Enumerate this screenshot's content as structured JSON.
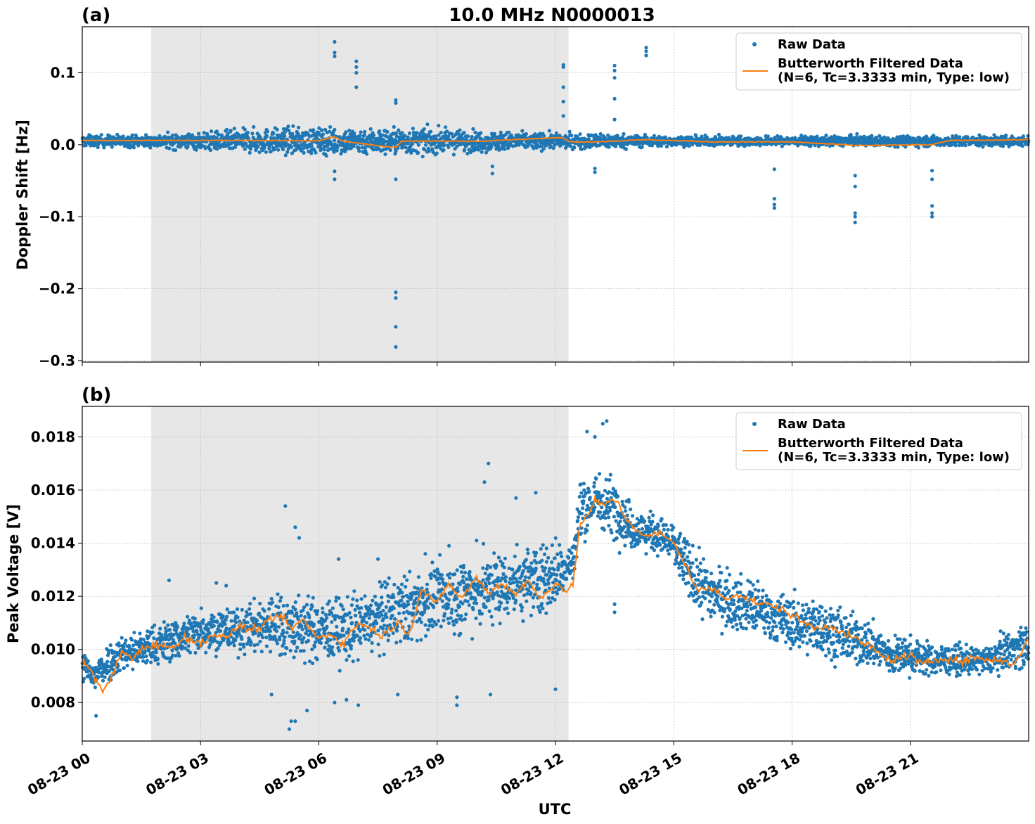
{
  "figure_title": "10.0 MHz N0000013",
  "x_axis_label": "UTC",
  "chart_data": [
    {
      "type": "scatter",
      "panel_label": "(a)",
      "title": "10.0 MHz N0000013",
      "ylabel": "Doppler Shift [Hz]",
      "xlabel": "",
      "xlim_hours": [
        0,
        24
      ],
      "ylim": [
        -0.302,
        0.164
      ],
      "yticks": [
        0.1,
        0.0,
        -0.1,
        -0.2,
        -0.3
      ],
      "ytick_labels": [
        "0.1",
        "0.0",
        "−0.1",
        "−0.2",
        "−0.3"
      ],
      "shaded_span_hours": [
        1.75,
        12.33
      ],
      "grid": true,
      "legend_position": "top-right",
      "series": [
        {
          "name": "Raw Data",
          "kind": "points",
          "color": "#1f77b4",
          "baseline_hz": 0.005,
          "band": {
            "hours": [
              0,
              1.75,
              3,
              4.5,
              6,
              8,
              10,
              12.33,
              13,
              15,
              18,
              21,
              24
            ],
            "halfwidth_hz": [
              0.013,
              0.014,
              0.02,
              0.028,
              0.03,
              0.03,
              0.024,
              0.016,
              0.018,
              0.011,
              0.011,
              0.012,
              0.012
            ]
          },
          "outliers": {
            "x": [
              6.4,
              6.4,
              6.4,
              6.95,
              6.95,
              6.95,
              6.95,
              6.4,
              6.4,
              7.95,
              7.95,
              7.95,
              7.95,
              7.95,
              7.95,
              7.95,
              10.4,
              10.4,
              12.2,
              12.2,
              12.2,
              12.2,
              12.2,
              13.0,
              13.0,
              13.5,
              13.5,
              13.5,
              13.5,
              13.5,
              14.3,
              14.3,
              14.3,
              17.55,
              17.55,
              17.55,
              17.55,
              19.6,
              19.6,
              19.6,
              19.6,
              19.6,
              21.55,
              21.55,
              21.55,
              21.55,
              21.55
            ],
            "y": [
              0.143,
              0.128,
              0.123,
              0.116,
              0.108,
              0.1,
              0.08,
              -0.037,
              -0.048,
              0.062,
              0.058,
              -0.048,
              -0.205,
              -0.213,
              -0.253,
              -0.281,
              -0.03,
              -0.04,
              0.111,
              0.108,
              0.08,
              0.06,
              0.04,
              -0.033,
              -0.038,
              0.11,
              0.103,
              0.093,
              0.064,
              0.035,
              0.135,
              0.13,
              0.124,
              -0.034,
              -0.075,
              -0.083,
              -0.088,
              -0.043,
              -0.058,
              -0.095,
              -0.1,
              -0.108,
              -0.036,
              -0.048,
              -0.085,
              -0.095,
              -0.1
            ]
          }
        },
        {
          "name": "Butterworth Filtered Data\n(N=6, Tc=3.3333 min, Type: low)",
          "kind": "line",
          "color": "#ff7f0e",
          "x": [
            0,
            2,
            4,
            6,
            6.4,
            6.6,
            7.95,
            8.1,
            10,
            12.2,
            12.35,
            13,
            14.3,
            16,
            18,
            19.6,
            21.55,
            22,
            24
          ],
          "y": [
            0.006,
            0.006,
            0.006,
            0.0055,
            0.011,
            0.005,
            -0.004,
            0.005,
            0.005,
            0.01,
            0.004,
            0.004,
            0.007,
            0.004,
            0.004,
            -0.001,
            0.0,
            0.006,
            0.007
          ]
        }
      ]
    },
    {
      "type": "scatter",
      "panel_label": "(b)",
      "title": "",
      "ylabel": "Peak Voltage [V]",
      "xlabel": "UTC",
      "xlim_hours": [
        0,
        24
      ],
      "ylim": [
        0.00655,
        0.01915
      ],
      "yticks": [
        0.018,
        0.016,
        0.014,
        0.012,
        0.01,
        0.008
      ],
      "ytick_labels": [
        "0.018",
        "0.016",
        "0.014",
        "0.012",
        "0.010",
        "0.008"
      ],
      "xtick_labels": [
        "08-23 00",
        "08-23 03",
        "08-23 06",
        "08-23 09",
        "08-23 12",
        "08-23 15",
        "08-23 18",
        "08-23 21"
      ],
      "xtick_hours": [
        0,
        3,
        6,
        9,
        12,
        15,
        18,
        21
      ],
      "shaded_span_hours": [
        1.75,
        12.33
      ],
      "grid": true,
      "legend_position": "top-right",
      "series": [
        {
          "name": "Raw Data",
          "kind": "points",
          "color": "#1f77b4",
          "band": {
            "hours": [
              0,
              0.3,
              0.5,
              1.0,
              1.5,
              2.0,
              2.5,
              3.0,
              3.5,
              4.0,
              4.5,
              5.0,
              5.5,
              6.0,
              6.5,
              7.0,
              7.5,
              8.0,
              8.5,
              9.0,
              9.5,
              10.0,
              10.5,
              11.0,
              11.5,
              12.0,
              12.45,
              12.6,
              13.0,
              13.5,
              14.0,
              14.5,
              15.0,
              15.5,
              16.0,
              16.5,
              17.0,
              17.5,
              18.0,
              18.5,
              19.0,
              19.5,
              20.0,
              20.5,
              21.0,
              21.5,
              22.0,
              22.5,
              23.0,
              23.5,
              24.0
            ],
            "low": [
              0.0085,
              0.0079,
              0.0082,
              0.0087,
              0.0088,
              0.0089,
              0.0091,
              0.0094,
              0.0093,
              0.0094,
              0.0092,
              0.0088,
              0.0088,
              0.0088,
              0.0087,
              0.0088,
              0.009,
              0.0093,
              0.0096,
              0.0098,
              0.0097,
              0.01,
              0.0101,
              0.0103,
              0.0104,
              0.0107,
              0.0118,
              0.0133,
              0.0138,
              0.0135,
              0.0132,
              0.0133,
              0.0125,
              0.0108,
              0.0103,
              0.0101,
              0.0099,
              0.0097,
              0.0093,
              0.0092,
              0.009,
              0.0088,
              0.0088,
              0.0085,
              0.0086,
              0.0086,
              0.0087,
              0.0087,
              0.0088,
              0.0088,
              0.0088
            ],
            "high": [
              0.0103,
              0.01,
              0.0105,
              0.011,
              0.0112,
              0.0115,
              0.0118,
              0.0121,
              0.0122,
              0.012,
              0.0126,
              0.0131,
              0.0128,
              0.0126,
              0.0128,
              0.0129,
              0.0133,
              0.0136,
              0.0137,
              0.014,
              0.0144,
              0.0144,
              0.0146,
              0.0147,
              0.0149,
              0.015,
              0.0147,
              0.017,
              0.0174,
              0.0172,
              0.0158,
              0.0155,
              0.0153,
              0.0145,
              0.0139,
              0.0135,
              0.0133,
              0.0128,
              0.0126,
              0.0126,
              0.0124,
              0.0119,
              0.0116,
              0.011,
              0.0109,
              0.0106,
              0.0105,
              0.0104,
              0.0104,
              0.0112,
              0.0116
            ]
          },
          "outliers": {
            "x": [
              0.35,
              2.2,
              3.4,
              3.65,
              4.8,
              5.15,
              5.25,
              5.3,
              5.4,
              5.4,
              5.5,
              5.7,
              6.4,
              6.5,
              6.7,
              7.0,
              7.5,
              8.0,
              8.7,
              9.3,
              9.5,
              9.5,
              10.0,
              10.2,
              10.3,
              10.35,
              11.0,
              11.5,
              12.0,
              12.8,
              13.0,
              13.2,
              13.3,
              13.5,
              13.5,
              14.3
            ],
            "y": [
              0.0075,
              0.0126,
              0.0125,
              0.0124,
              0.0083,
              0.0154,
              0.007,
              0.0073,
              0.0146,
              0.0073,
              0.0142,
              0.0077,
              0.008,
              0.0134,
              0.0081,
              0.0079,
              0.0134,
              0.0083,
              0.0136,
              0.0139,
              0.0082,
              0.0079,
              0.0141,
              0.0163,
              0.017,
              0.0083,
              0.0157,
              0.0159,
              0.0085,
              0.0182,
              0.018,
              0.0185,
              0.0186,
              0.0114,
              0.0117,
              0.0136
            ]
          }
        },
        {
          "name": "Butterworth Filtered Data\n(N=6, Tc=3.3333 min, Type: low)",
          "kind": "line",
          "color": "#ff7f0e",
          "x": [
            0,
            0.15,
            0.3,
            0.5,
            0.7,
            1.0,
            1.3,
            1.6,
            2.0,
            2.3,
            2.6,
            3.0,
            3.3,
            3.6,
            4.0,
            4.3,
            4.6,
            5.0,
            5.3,
            5.6,
            6.0,
            6.3,
            6.6,
            7.0,
            7.3,
            7.6,
            8.0,
            8.3,
            8.6,
            9.0,
            9.3,
            9.6,
            10.0,
            10.3,
            10.6,
            11.0,
            11.3,
            11.6,
            12.0,
            12.3,
            12.45,
            12.6,
            12.8,
            13.0,
            13.2,
            13.5,
            13.8,
            14.0,
            14.3,
            14.6,
            15.0,
            15.3,
            15.6,
            16.0,
            16.3,
            16.6,
            17.0,
            17.3,
            17.6,
            18.0,
            18.3,
            18.6,
            19.0,
            19.3,
            19.6,
            20.0,
            20.3,
            20.6,
            21.0,
            21.3,
            21.6,
            22.0,
            22.3,
            22.6,
            23.0,
            23.3,
            23.6,
            24.0
          ],
          "y": [
            0.0095,
            0.0093,
            0.009,
            0.0084,
            0.0088,
            0.0099,
            0.0097,
            0.0101,
            0.0102,
            0.01,
            0.0105,
            0.0102,
            0.0106,
            0.0104,
            0.0109,
            0.0107,
            0.0109,
            0.0113,
            0.0108,
            0.0111,
            0.0104,
            0.0106,
            0.0102,
            0.011,
            0.0108,
            0.0105,
            0.011,
            0.0106,
            0.0123,
            0.0117,
            0.0125,
            0.0119,
            0.0127,
            0.0121,
            0.0125,
            0.0121,
            0.0126,
            0.0119,
            0.0125,
            0.0122,
            0.0124,
            0.0146,
            0.015,
            0.0156,
            0.0154,
            0.0157,
            0.0149,
            0.0146,
            0.0142,
            0.0144,
            0.014,
            0.0132,
            0.0122,
            0.0123,
            0.0119,
            0.0121,
            0.0118,
            0.0117,
            0.0116,
            0.0113,
            0.011,
            0.0108,
            0.0109,
            0.0106,
            0.0104,
            0.0101,
            0.0097,
            0.0096,
            0.0098,
            0.0094,
            0.0096,
            0.0097,
            0.0095,
            0.0097,
            0.0096,
            0.0096,
            0.0094,
            0.0104
          ]
        }
      ]
    }
  ]
}
